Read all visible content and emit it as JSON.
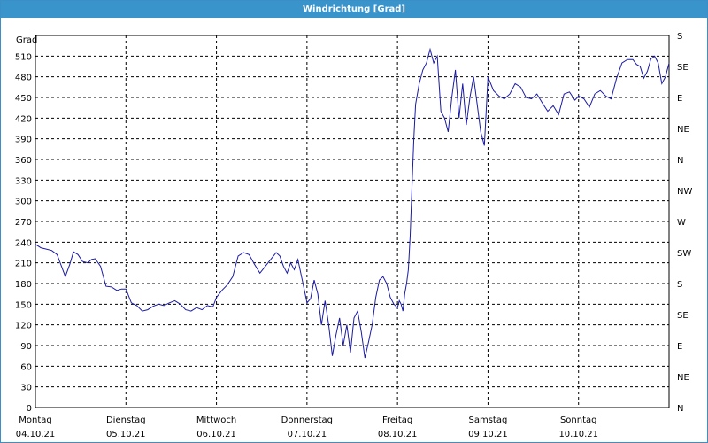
{
  "window": {
    "title": "Windrichtung [Grad]"
  },
  "chart_data": {
    "type": "line",
    "title": "Windrichtung [Grad]",
    "ylabel": "Grad",
    "ylim": [
      0,
      540
    ],
    "yticks": [
      0,
      30,
      60,
      90,
      120,
      150,
      180,
      210,
      240,
      270,
      300,
      330,
      360,
      390,
      420,
      450,
      480,
      510
    ],
    "right_ticks": [
      "N",
      "NE",
      "E",
      "SE",
      "S",
      "SW",
      "W",
      "NW",
      "N",
      "NE",
      "E",
      "SE",
      "S"
    ],
    "days": [
      {
        "day": "Montag",
        "date": "04.10.21"
      },
      {
        "day": "Dienstag",
        "date": "05.10.21"
      },
      {
        "day": "Mittwoch",
        "date": "06.10.21"
      },
      {
        "day": "Donnerstag",
        "date": "07.10.21"
      },
      {
        "day": "Freitag",
        "date": "08.10.21"
      },
      {
        "day": "Samstag",
        "date": "09.10.21"
      },
      {
        "day": "Sonntag",
        "date": "10.10.21"
      }
    ],
    "grid": true,
    "line_color": "#1a1aa6",
    "series": [
      {
        "x": [
          0,
          0.06,
          0.12,
          0.18,
          0.24,
          0.33,
          0.38,
          0.42,
          0.47,
          0.52,
          0.58,
          0.62,
          0.66,
          0.72,
          0.78,
          0.84,
          0.9,
          0.95,
          1.0,
          1.06,
          1.12,
          1.18,
          1.24,
          1.3,
          1.36,
          1.42,
          1.48,
          1.54,
          1.6,
          1.66,
          1.72,
          1.78,
          1.84,
          1.9,
          1.96,
          2.0,
          2.06,
          2.12,
          2.18,
          2.24,
          2.3,
          2.36,
          2.42,
          2.48,
          2.54,
          2.6,
          2.66,
          2.7,
          2.74,
          2.78,
          2.82,
          2.86,
          2.9,
          2.94,
          2.98,
          3.0,
          3.04,
          3.08,
          3.12,
          3.16,
          3.2,
          3.24,
          3.28,
          3.32,
          3.36,
          3.4,
          3.44,
          3.48,
          3.52,
          3.56,
          3.6,
          3.64,
          3.68,
          3.72,
          3.76,
          3.8,
          3.84,
          3.88,
          3.92,
          3.96,
          4.0,
          4.02,
          4.04,
          4.06,
          4.08,
          4.1,
          4.12,
          4.14,
          4.16,
          4.18,
          4.2,
          4.24,
          4.28,
          4.32,
          4.36,
          4.4,
          4.44,
          4.48,
          4.52,
          4.56,
          4.6,
          4.64,
          4.68,
          4.72,
          4.76,
          4.8,
          4.84,
          4.88,
          4.92,
          4.96,
          5.0,
          5.06,
          5.12,
          5.18,
          5.24,
          5.3,
          5.36,
          5.42,
          5.48,
          5.54,
          5.6,
          5.66,
          5.72,
          5.78,
          5.84,
          5.9,
          5.96,
          6.0,
          6.06,
          6.12,
          6.18,
          6.24,
          6.3,
          6.36,
          6.42,
          6.48,
          6.54,
          6.6,
          6.64,
          6.68,
          6.72,
          6.76,
          6.8,
          6.84,
          6.88,
          6.92,
          6.96,
          7.0
        ],
        "y": [
          237,
          232,
          230,
          228,
          222,
          190,
          208,
          226,
          222,
          212,
          210,
          215,
          216,
          205,
          176,
          175,
          170,
          172,
          172,
          152,
          148,
          140,
          142,
          147,
          150,
          148,
          152,
          155,
          150,
          142,
          140,
          145,
          142,
          148,
          146,
          160,
          170,
          178,
          190,
          220,
          225,
          222,
          208,
          195,
          205,
          215,
          225,
          220,
          205,
          195,
          210,
          200,
          215,
          190,
          165,
          152,
          158,
          185,
          165,
          120,
          155,
          120,
          75,
          105,
          130,
          90,
          120,
          80,
          130,
          140,
          110,
          72,
          95,
          120,
          160,
          185,
          190,
          180,
          160,
          150,
          145,
          155,
          150,
          140,
          165,
          180,
          200,
          250,
          320,
          390,
          440,
          470,
          490,
          500,
          520,
          500,
          510,
          430,
          420,
          400,
          450,
          490,
          420,
          470,
          410,
          450,
          480,
          440,
          400,
          380,
          480,
          460,
          452,
          448,
          455,
          470,
          465,
          450,
          448,
          455,
          442,
          430,
          438,
          425,
          455,
          458,
          446,
          452,
          448,
          436,
          455,
          460,
          452,
          448,
          478,
          500,
          505,
          505,
          498,
          495,
          478,
          488,
          506,
          510,
          500,
          470,
          480,
          500
        ]
      }
    ]
  }
}
